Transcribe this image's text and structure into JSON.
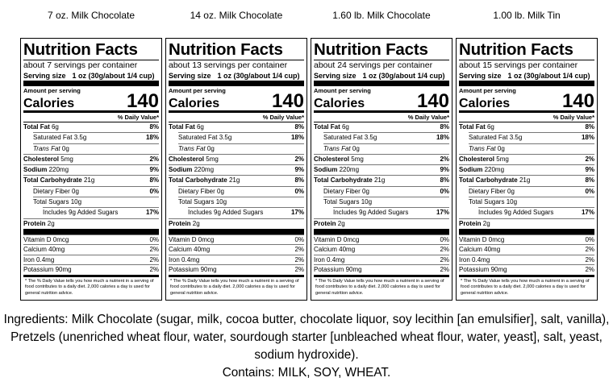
{
  "labels": [
    {
      "heading": "7 oz. Milk Chocolate",
      "title": "Nutrition Facts",
      "servings": "about 7 servings per container",
      "serving_size_label": "Serving size",
      "serving_size": "1 oz (30g/about 1/4 cup)",
      "amount_per_serving": "Amount per serving",
      "calories_label": "Calories",
      "calories": "140",
      "dv_header": "% Daily Value*",
      "nutrients": [
        {
          "name": "Total Fat",
          "amount": "6g",
          "dv": "8%"
        },
        {
          "name": "Saturated Fat",
          "amount": "3.5g",
          "dv": "18%"
        },
        {
          "name": "Trans Fat",
          "amount": "0g"
        },
        {
          "name": "Cholesterol",
          "amount": "5mg",
          "dv": "2%"
        },
        {
          "name": "Sodium",
          "amount": "220mg",
          "dv": "9%"
        },
        {
          "name": "Total Carbohydrate",
          "amount": "21g",
          "dv": "8%"
        },
        {
          "name": "Dietary Fiber",
          "amount": "0g",
          "dv": "0%"
        },
        {
          "name": "Total Sugars",
          "amount": "10g"
        },
        {
          "name": "Includes 9g Added Sugars",
          "dv": "17%"
        },
        {
          "name": "Protein",
          "amount": "2g"
        }
      ],
      "vitamins": [
        {
          "name": "Vitamin D",
          "amount": "0mcg",
          "dv": "0%"
        },
        {
          "name": "Calcium",
          "amount": "40mg",
          "dv": "2%"
        },
        {
          "name": "Iron",
          "amount": "0.4mg",
          "dv": "2%"
        },
        {
          "name": "Potassium",
          "amount": "90mg",
          "dv": "2%"
        }
      ],
      "footnote": "* The % Daily Value tells you how much a nutrient in a serving of food contributes to a daily diet. 2,000 calories a day is used for general nutrition advice."
    },
    {
      "heading": "14 oz. Milk Chocolate",
      "title": "Nutrition Facts",
      "servings": "about 13 servings per container",
      "serving_size_label": "Serving size",
      "serving_size": "1 oz (30g/about 1/4 cup)",
      "amount_per_serving": "Amount per serving",
      "calories_label": "Calories",
      "calories": "140",
      "dv_header": "% Daily Value*",
      "nutrients": [
        {
          "name": "Total Fat",
          "amount": "6g",
          "dv": "8%"
        },
        {
          "name": "Saturated Fat",
          "amount": "3.5g",
          "dv": "18%"
        },
        {
          "name": "Trans Fat",
          "amount": "0g"
        },
        {
          "name": "Cholesterol",
          "amount": "5mg",
          "dv": "2%"
        },
        {
          "name": "Sodium",
          "amount": "220mg",
          "dv": "9%"
        },
        {
          "name": "Total Carbohydrate",
          "amount": "21g",
          "dv": "8%"
        },
        {
          "name": "Dietary Fiber",
          "amount": "0g",
          "dv": "0%"
        },
        {
          "name": "Total Sugars",
          "amount": "10g"
        },
        {
          "name": "Includes 9g Added Sugars",
          "dv": "17%"
        },
        {
          "name": "Protein",
          "amount": "2g"
        }
      ],
      "vitamins": [
        {
          "name": "Vitamin D",
          "amount": "0mcg",
          "dv": "0%"
        },
        {
          "name": "Calcium",
          "amount": "40mg",
          "dv": "2%"
        },
        {
          "name": "Iron",
          "amount": "0.4mg",
          "dv": "2%"
        },
        {
          "name": "Potassium",
          "amount": "90mg",
          "dv": "2%"
        }
      ],
      "footnote": "* The % Daily Value tells you how much a nutrient in a serving of food contributes to a daily diet. 2,000 calories a day is used for general nutrition advice."
    },
    {
      "heading": "1.60 lb. Milk Chocolate",
      "title": "Nutrition Facts",
      "servings": "about 24 servings per container",
      "serving_size_label": "Serving size",
      "serving_size": "1 oz (30g/about 1/4 cup)",
      "amount_per_serving": "Amount per serving",
      "calories_label": "Calories",
      "calories": "140",
      "dv_header": "% Daily Value*",
      "nutrients": [
        {
          "name": "Total Fat",
          "amount": "6g",
          "dv": "8%"
        },
        {
          "name": "Saturated Fat",
          "amount": "3.5g",
          "dv": "18%"
        },
        {
          "name": "Trans Fat",
          "amount": "0g"
        },
        {
          "name": "Cholesterol",
          "amount": "5mg",
          "dv": "2%"
        },
        {
          "name": "Sodium",
          "amount": "220mg",
          "dv": "9%"
        },
        {
          "name": "Total Carbohydrate",
          "amount": "21g",
          "dv": "8%"
        },
        {
          "name": "Dietary Fiber",
          "amount": "0g",
          "dv": "0%"
        },
        {
          "name": "Total Sugars",
          "amount": "10g"
        },
        {
          "name": "Includes 9g Added Sugars",
          "dv": "17%"
        },
        {
          "name": "Protein",
          "amount": "2g"
        }
      ],
      "vitamins": [
        {
          "name": "Vitamin D",
          "amount": "0mcg",
          "dv": "0%"
        },
        {
          "name": "Calcium",
          "amount": "40mg",
          "dv": "2%"
        },
        {
          "name": "Iron",
          "amount": "0.4mg",
          "dv": "2%"
        },
        {
          "name": "Potassium",
          "amount": "90mg",
          "dv": "2%"
        }
      ],
      "footnote": "* The % Daily Value tells you how much a nutrient in a serving of food contributes to a daily diet. 2,000 calories a day is used for general nutrition advice."
    },
    {
      "heading": "1.00 lb. Milk Tin",
      "title": "Nutrition Facts",
      "servings": "about 15 servings per container",
      "serving_size_label": "Serving size",
      "serving_size": "1 oz (30g/about 1/4 cup)",
      "amount_per_serving": "Amount per serving",
      "calories_label": "Calories",
      "calories": "140",
      "dv_header": "% Daily Value*",
      "nutrients": [
        {
          "name": "Total Fat",
          "amount": "6g",
          "dv": "8%"
        },
        {
          "name": "Saturated Fat",
          "amount": "3.5g",
          "dv": "18%"
        },
        {
          "name": "Trans Fat",
          "amount": "0g"
        },
        {
          "name": "Cholesterol",
          "amount": "5mg",
          "dv": "2%"
        },
        {
          "name": "Sodium",
          "amount": "220mg",
          "dv": "9%"
        },
        {
          "name": "Total Carbohydrate",
          "amount": "21g",
          "dv": "8%"
        },
        {
          "name": "Dietary Fiber",
          "amount": "0g",
          "dv": "0%"
        },
        {
          "name": "Total Sugars",
          "amount": "10g"
        },
        {
          "name": "Includes 9g Added Sugars",
          "dv": "17%"
        },
        {
          "name": "Protein",
          "amount": "2g"
        }
      ],
      "vitamins": [
        {
          "name": "Vitamin D",
          "amount": "0mcg",
          "dv": "0%"
        },
        {
          "name": "Calcium",
          "amount": "40mg",
          "dv": "2%"
        },
        {
          "name": "Iron",
          "amount": "0.4mg",
          "dv": "2%"
        },
        {
          "name": "Potassium",
          "amount": "90mg",
          "dv": "2%"
        }
      ],
      "footnote": "* The % Daily Value tells you how much a nutrient in a serving of food contributes to a daily diet. 2,000 calories a day is used for general nutrition advice."
    }
  ],
  "ingredients": "Ingredients: Milk Chocolate (sugar, milk, cocoa butter, chocolate liquor, soy lecithin [an emulsifier], salt, vanilla), Pretzels (unenriched wheat flour, water, sourdough starter [unbleached wheat flour, water, yeast], salt, yeast, sodium hydroxide).",
  "contains": "Contains: MILK, SOY, WHEAT."
}
